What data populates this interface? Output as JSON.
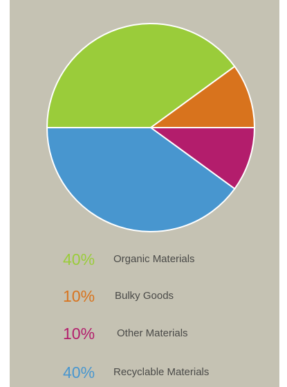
{
  "chart_data": {
    "type": "pie",
    "slices": [
      {
        "percent_label": "40%",
        "label": "Organic Materials",
        "value": 40,
        "color": "#9acc3a"
      },
      {
        "percent_label": "10%",
        "label": "Bulky Goods",
        "value": 10,
        "color": "#d8731d"
      },
      {
        "percent_label": "10%",
        "label": "Other Materials",
        "value": 10,
        "color": "#b31d6c"
      },
      {
        "percent_label": "40%",
        "label": "Recyclable Materials",
        "value": 40,
        "color": "#4896cf"
      }
    ]
  }
}
